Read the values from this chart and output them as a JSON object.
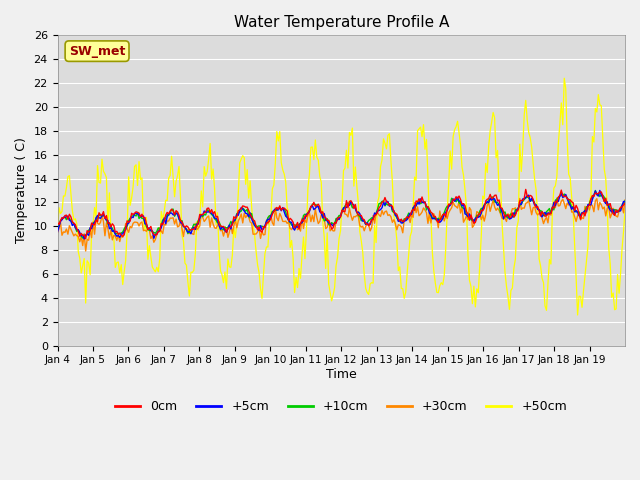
{
  "title": "Water Temperature Profile A",
  "xlabel": "Time",
  "ylabel": "Temperature ( C)",
  "ylim": [
    0,
    26
  ],
  "yticks": [
    0,
    2,
    4,
    6,
    8,
    10,
    12,
    14,
    16,
    18,
    20,
    22,
    24,
    26
  ],
  "x_labels": [
    "Jan 4",
    "Jan 5",
    "Jan 6",
    "Jan 7",
    "Jan 8",
    "Jan 9",
    "Jan 10",
    "Jan 11",
    "Jan 12",
    "Jan 13",
    "Jan 14",
    "Jan 15",
    "Jan 16",
    "Jan 17",
    "Jan 18",
    "Jan 19"
  ],
  "colors": {
    "0cm": "#ff0000",
    "+5cm": "#0000ff",
    "+10cm": "#00cc00",
    "+30cm": "#ff8800",
    "+50cm": "#ffff00"
  },
  "sw_met_label": "SW_met",
  "sw_met_box_facecolor": "#ffff99",
  "sw_met_text_color": "#990000",
  "sw_met_edge_color": "#999900",
  "fig_facecolor": "#f0f0f0",
  "ax_facecolor": "#dcdcdc",
  "grid_color": "#ffffff",
  "n_days": 16,
  "points_per_day": 24
}
